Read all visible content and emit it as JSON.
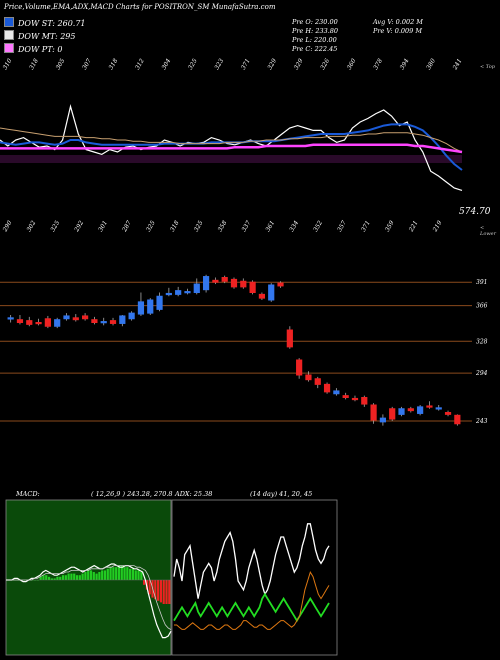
{
  "header": {
    "title": "Price,Volume,EMA,ADX,MACD Charts for POSITRON_SM MunafaSutra.com"
  },
  "legend": [
    {
      "label": "DOW ST: 260.71",
      "color": "#1a5ad8"
    },
    {
      "label": "DOW MT: 295",
      "color": "#e8e8e8"
    },
    {
      "label": "DOW PT: 0",
      "color": "#ff77ff"
    }
  ],
  "stats": [
    "Pre O: 230.00",
    "Pre H: 233.80",
    "Pre L: 220.00",
    "Pre C: 222.45",
    "Avg V: 0.002 M",
    "Pre V: 0.009 M"
  ],
  "edge_labels": {
    "top": "< Top",
    "lower": "< Lower"
  },
  "colors": {
    "ema_short": "#1a5ad8",
    "ema_long": "#c8a070",
    "price_line": "#ffffff",
    "ema_magenta": "#ff44ff",
    "bull": "#3377ee",
    "bear": "#ee2222",
    "level_line": "#8a4a1c",
    "macd_bg": "#0a4a0a",
    "macd_bar": "#22cc22",
    "adx_plus": "#22dd22",
    "adx_minus": "#dd7711"
  },
  "chart_data": [
    {
      "type": "line",
      "name": "price_ema_panel",
      "series_note": "",
      "top_ticks": [
        "310",
        "318",
        "305",
        "307",
        "318",
        "312",
        "304",
        "325",
        "323",
        "371",
        "329",
        "329",
        "326",
        "360",
        "378",
        "394",
        "380",
        "241"
      ],
      "bottom_ticks": [
        "290",
        "302",
        "325",
        "292",
        "301",
        "287",
        "325",
        "318",
        "325",
        "358",
        "337",
        "361",
        "334",
        "352",
        "357",
        "371",
        "359",
        "221",
        "219"
      ],
      "last_price_label": "574.70",
      "series": [
        {
          "name": "price",
          "values": [
            150,
            155,
            150,
            148,
            152,
            156,
            155,
            158,
            150,
            122,
            145,
            158,
            160,
            162,
            158,
            160,
            156,
            155,
            158,
            156,
            155,
            150,
            152,
            155,
            152,
            153,
            152,
            148,
            150,
            153,
            154,
            152,
            150,
            153,
            155,
            150,
            145,
            140,
            138,
            140,
            142,
            142,
            148,
            152,
            150,
            140,
            135,
            132,
            128,
            125,
            130,
            138,
            135,
            150,
            160,
            176,
            180,
            185,
            190,
            192
          ]
        },
        {
          "name": "ema_short",
          "values": [
            152,
            153,
            154,
            153,
            152,
            152,
            153,
            154,
            153,
            150,
            150,
            152,
            153,
            154,
            154,
            154,
            154,
            154,
            154,
            154,
            154,
            153,
            153,
            153,
            153,
            153,
            153,
            152,
            152,
            152,
            152,
            152,
            151,
            151,
            151,
            151,
            150,
            149,
            148,
            147,
            146,
            145,
            145,
            145,
            145,
            144,
            143,
            142,
            140,
            138,
            137,
            137,
            137,
            139,
            142,
            148,
            155,
            163,
            170,
            175
          ]
        },
        {
          "name": "ema_long",
          "values": [
            140,
            141,
            142,
            143,
            144,
            145,
            146,
            147,
            147,
            147,
            147,
            148,
            148,
            149,
            149,
            150,
            150,
            151,
            151,
            152,
            152,
            152,
            152,
            153,
            153,
            153,
            153,
            153,
            153,
            152,
            152,
            152,
            151,
            151,
            150,
            150,
            150,
            149,
            149,
            148,
            148,
            148,
            147,
            147,
            147,
            146,
            146,
            145,
            145,
            144,
            144,
            144,
            144,
            145,
            146,
            148,
            150,
            153,
            157,
            160
          ]
        },
        {
          "name": "ema_magenta",
          "values": [
            157,
            157,
            157,
            157,
            157,
            157,
            157,
            157,
            157,
            157,
            157,
            157,
            157,
            157,
            157,
            157,
            157,
            157,
            157,
            157,
            157,
            157,
            157,
            157,
            157,
            157,
            157,
            157,
            157,
            157,
            156,
            156,
            156,
            156,
            155,
            155,
            155,
            155,
            155,
            155,
            154,
            154,
            154,
            154,
            154,
            154,
            154,
            154,
            154,
            154,
            154,
            154,
            154,
            155,
            155,
            156,
            157,
            158,
            159,
            160
          ]
        }
      ]
    },
    {
      "type": "bar",
      "name": "candlestick_panel",
      "candle_note": "",
      "levels": [
        391,
        366,
        328,
        294,
        243
      ],
      "ylim": [
        180,
        420
      ],
      "candles": [
        {
          "o": 352,
          "c": 353,
          "h": 356,
          "l": 348
        },
        {
          "o": 351,
          "c": 348,
          "h": 356,
          "l": 346
        },
        {
          "o": 350,
          "c": 346,
          "h": 354,
          "l": 344
        },
        {
          "o": 348,
          "c": 347,
          "h": 352,
          "l": 345
        },
        {
          "o": 352,
          "c": 344,
          "h": 355,
          "l": 342
        },
        {
          "o": 344,
          "c": 351,
          "h": 353,
          "l": 342
        },
        {
          "o": 352,
          "c": 355,
          "h": 358,
          "l": 350
        },
        {
          "o": 353,
          "c": 351,
          "h": 357,
          "l": 349
        },
        {
          "o": 355,
          "c": 352,
          "h": 358,
          "l": 350
        },
        {
          "o": 351,
          "c": 348,
          "h": 354,
          "l": 346
        },
        {
          "o": 349,
          "c": 349,
          "h": 353,
          "l": 345
        },
        {
          "o": 350,
          "c": 347,
          "h": 353,
          "l": 345
        },
        {
          "o": 347,
          "c": 355,
          "h": 356,
          "l": 344
        },
        {
          "o": 352,
          "c": 358,
          "h": 360,
          "l": 350
        },
        {
          "o": 357,
          "c": 370,
          "h": 380,
          "l": 355
        },
        {
          "o": 358,
          "c": 372,
          "h": 374,
          "l": 356
        },
        {
          "o": 362,
          "c": 376,
          "h": 380,
          "l": 360
        },
        {
          "o": 378,
          "c": 379,
          "h": 385,
          "l": 376
        },
        {
          "o": 378,
          "c": 382,
          "h": 386,
          "l": 376
        },
        {
          "o": 380,
          "c": 381,
          "h": 384,
          "l": 378
        },
        {
          "o": 380,
          "c": 389,
          "h": 395,
          "l": 378
        },
        {
          "o": 383,
          "c": 397,
          "h": 399,
          "l": 380
        },
        {
          "o": 393,
          "c": 391,
          "h": 396,
          "l": 389
        },
        {
          "o": 396,
          "c": 392,
          "h": 398,
          "l": 390
        },
        {
          "o": 394,
          "c": 386,
          "h": 396,
          "l": 384
        },
        {
          "o": 392,
          "c": 386,
          "h": 395,
          "l": 384
        },
        {
          "o": 391,
          "c": 380,
          "h": 393,
          "l": 378
        },
        {
          "o": 378,
          "c": 374,
          "h": 380,
          "l": 372
        },
        {
          "o": 372,
          "c": 388,
          "h": 390,
          "l": 370
        },
        {
          "o": 390,
          "c": 387,
          "h": 392,
          "l": 385
        },
        {
          "o": 340,
          "c": 322,
          "h": 344,
          "l": 320
        },
        {
          "o": 308,
          "c": 292,
          "h": 310,
          "l": 288
        },
        {
          "o": 292,
          "c": 287,
          "h": 296,
          "l": 285
        },
        {
          "o": 288,
          "c": 282,
          "h": 290,
          "l": 278
        },
        {
          "o": 282,
          "c": 274,
          "h": 284,
          "l": 272
        },
        {
          "o": 272,
          "c": 275,
          "h": 278,
          "l": 270
        },
        {
          "o": 270,
          "c": 268,
          "h": 273,
          "l": 266
        },
        {
          "o": 267,
          "c": 266,
          "h": 270,
          "l": 264
        },
        {
          "o": 268,
          "c": 261,
          "h": 270,
          "l": 258
        },
        {
          "o": 260,
          "c": 244,
          "h": 262,
          "l": 240
        },
        {
          "o": 242,
          "c": 246,
          "h": 250,
          "l": 238
        },
        {
          "o": 256,
          "c": 245,
          "h": 258,
          "l": 243
        },
        {
          "o": 250,
          "c": 256,
          "h": 258,
          "l": 248
        },
        {
          "o": 256,
          "c": 254,
          "h": 258,
          "l": 252
        },
        {
          "o": 251,
          "c": 258,
          "h": 260,
          "l": 249
        },
        {
          "o": 259,
          "c": 258,
          "h": 264,
          "l": 256
        },
        {
          "o": 256,
          "c": 257,
          "h": 260,
          "l": 254
        },
        {
          "o": 252,
          "c": 250,
          "h": 254,
          "l": 248
        },
        {
          "o": 249,
          "c": 240,
          "h": 250,
          "l": 238
        }
      ]
    },
    {
      "type": "bar",
      "name": "macd_panel",
      "label": "MACD:",
      "values_label": "( 12,26,9 ) 243.28, 270.8",
      "histogram": [
        0,
        0,
        0,
        0,
        0,
        0,
        0,
        0,
        0,
        0,
        0,
        0,
        2,
        3,
        3,
        2,
        1,
        1,
        2,
        2,
        3,
        3,
        4,
        4,
        4,
        3,
        3,
        4,
        5,
        6,
        6,
        5,
        4,
        5,
        6,
        6,
        7,
        8,
        8,
        8,
        9,
        9,
        8,
        8,
        7,
        7,
        6,
        6,
        5,
        -3,
        -6,
        -9,
        -11,
        -12,
        -13,
        -14,
        -15,
        -15,
        -15
      ],
      "macd": [
        0,
        0,
        0,
        1,
        1,
        0,
        -1,
        -1,
        0,
        1,
        1,
        2,
        3,
        5,
        6,
        5,
        4,
        3,
        3,
        4,
        5,
        6,
        7,
        8,
        8,
        7,
        6,
        5,
        6,
        7,
        8,
        9,
        8,
        7,
        7,
        8,
        9,
        10,
        10,
        9,
        8,
        8,
        9,
        9,
        8,
        7,
        7,
        6,
        5,
        0,
        -8,
        -15,
        -22,
        -28,
        -32,
        -36,
        -36,
        -35,
        -32
      ],
      "signal": [
        0,
        0,
        0,
        0,
        0,
        0,
        0,
        0,
        0,
        0,
        1,
        1,
        2,
        3,
        4,
        4,
        4,
        4,
        4,
        4,
        4,
        5,
        5,
        6,
        6,
        6,
        6,
        6,
        6,
        6,
        7,
        7,
        7,
        7,
        7,
        8,
        8,
        8,
        9,
        9,
        9,
        9,
        9,
        9,
        9,
        9,
        8,
        8,
        7,
        6,
        3,
        -2,
        -8,
        -14,
        -19,
        -24,
        -28,
        -30,
        -31
      ]
    },
    {
      "type": "line",
      "name": "adx_panel",
      "label": "ADX: 25.38",
      "values_label": "(14 day) 41, 20, 45",
      "series": [
        {
          "name": "adx",
          "values": [
            32,
            40,
            36,
            30,
            42,
            44,
            46,
            38,
            30,
            22,
            28,
            34,
            36,
            38,
            36,
            30,
            34,
            40,
            44,
            48,
            50,
            52,
            48,
            40,
            30,
            28,
            26,
            30,
            36,
            40,
            44,
            40,
            34,
            28,
            24,
            26,
            30,
            36,
            42,
            46,
            50,
            50,
            46,
            42,
            38,
            34,
            36,
            40,
            46,
            50,
            56,
            56,
            50,
            44,
            40,
            38,
            40,
            44,
            46
          ]
        },
        {
          "name": "plus_di",
          "values": [
            12,
            14,
            16,
            18,
            16,
            14,
            16,
            18,
            20,
            16,
            14,
            16,
            18,
            20,
            18,
            16,
            14,
            16,
            18,
            16,
            14,
            16,
            18,
            20,
            18,
            16,
            14,
            16,
            18,
            16,
            14,
            16,
            18,
            22,
            24,
            22,
            20,
            18,
            16,
            18,
            20,
            22,
            20,
            18,
            16,
            14,
            12,
            14,
            16,
            18,
            20,
            22,
            20,
            18,
            16,
            14,
            16,
            18,
            20
          ]
        },
        {
          "name": "minus_di",
          "values": [
            10,
            10,
            9,
            8,
            8,
            9,
            10,
            11,
            10,
            9,
            8,
            8,
            9,
            10,
            10,
            9,
            8,
            8,
            9,
            10,
            10,
            9,
            8,
            8,
            9,
            10,
            12,
            12,
            11,
            10,
            9,
            9,
            10,
            10,
            9,
            8,
            8,
            9,
            10,
            11,
            12,
            12,
            11,
            10,
            9,
            10,
            12,
            14,
            20,
            26,
            30,
            34,
            32,
            28,
            24,
            22,
            24,
            26,
            28
          ]
        }
      ]
    }
  ]
}
